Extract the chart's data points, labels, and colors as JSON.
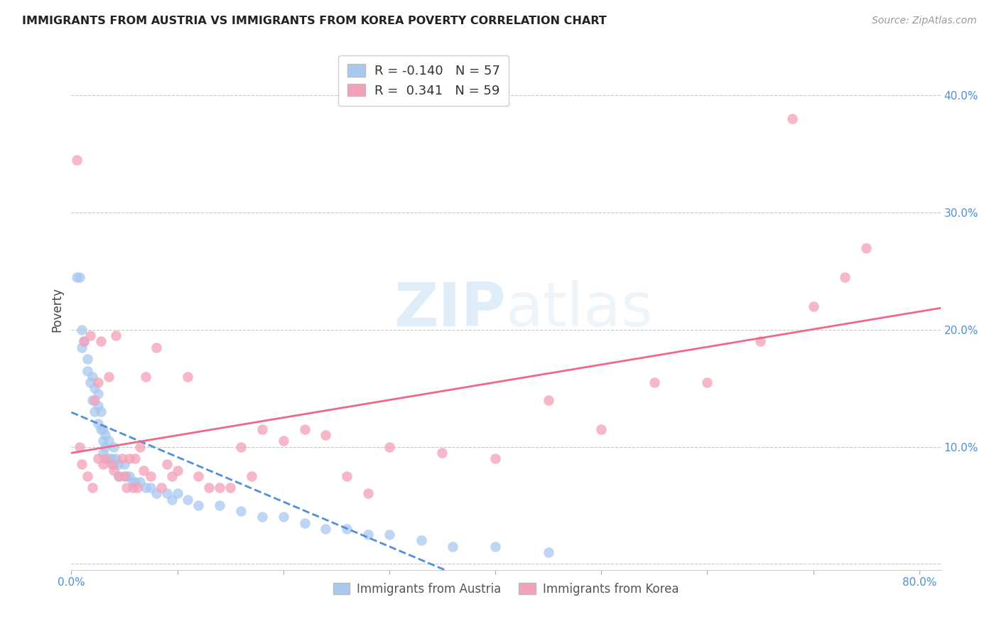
{
  "title": "IMMIGRANTS FROM AUSTRIA VS IMMIGRANTS FROM KOREA POVERTY CORRELATION CHART",
  "source": "Source: ZipAtlas.com",
  "xlim": [
    0.0,
    0.82
  ],
  "ylim": [
    -0.005,
    0.44
  ],
  "watermark_zip": "ZIP",
  "watermark_atlas": "atlas",
  "legend_r_austria": "-0.140",
  "legend_n_austria": "57",
  "legend_r_korea": " 0.341",
  "legend_n_korea": "59",
  "austria_color": "#a8c8f0",
  "korea_color": "#f4a0b8",
  "austria_line_color": "#5090d8",
  "korea_line_color": "#f06888",
  "ylabel_label": "Poverty",
  "austria_scatter_x": [
    0.005,
    0.008,
    0.01,
    0.01,
    0.012,
    0.015,
    0.015,
    0.018,
    0.02,
    0.02,
    0.022,
    0.022,
    0.025,
    0.025,
    0.025,
    0.028,
    0.028,
    0.03,
    0.03,
    0.03,
    0.032,
    0.032,
    0.035,
    0.035,
    0.038,
    0.04,
    0.04,
    0.042,
    0.045,
    0.045,
    0.05,
    0.052,
    0.055,
    0.058,
    0.06,
    0.065,
    0.07,
    0.075,
    0.08,
    0.09,
    0.095,
    0.1,
    0.11,
    0.12,
    0.14,
    0.16,
    0.18,
    0.2,
    0.22,
    0.24,
    0.26,
    0.28,
    0.3,
    0.33,
    0.36,
    0.4,
    0.45
  ],
  "austria_scatter_y": [
    0.245,
    0.245,
    0.2,
    0.185,
    0.19,
    0.175,
    0.165,
    0.155,
    0.16,
    0.14,
    0.15,
    0.13,
    0.145,
    0.135,
    0.12,
    0.13,
    0.115,
    0.115,
    0.105,
    0.095,
    0.11,
    0.1,
    0.105,
    0.09,
    0.09,
    0.1,
    0.085,
    0.09,
    0.085,
    0.075,
    0.085,
    0.075,
    0.075,
    0.07,
    0.07,
    0.07,
    0.065,
    0.065,
    0.06,
    0.06,
    0.055,
    0.06,
    0.055,
    0.05,
    0.05,
    0.045,
    0.04,
    0.04,
    0.035,
    0.03,
    0.03,
    0.025,
    0.025,
    0.02,
    0.015,
    0.015,
    0.01
  ],
  "korea_scatter_x": [
    0.005,
    0.008,
    0.01,
    0.012,
    0.015,
    0.018,
    0.02,
    0.022,
    0.025,
    0.025,
    0.028,
    0.03,
    0.032,
    0.035,
    0.038,
    0.04,
    0.042,
    0.045,
    0.048,
    0.05,
    0.052,
    0.055,
    0.058,
    0.06,
    0.062,
    0.065,
    0.068,
    0.07,
    0.075,
    0.08,
    0.085,
    0.09,
    0.095,
    0.1,
    0.11,
    0.12,
    0.13,
    0.14,
    0.15,
    0.16,
    0.17,
    0.18,
    0.2,
    0.22,
    0.24,
    0.26,
    0.28,
    0.3,
    0.35,
    0.4,
    0.45,
    0.5,
    0.55,
    0.6,
    0.65,
    0.68,
    0.7,
    0.73,
    0.75
  ],
  "korea_scatter_y": [
    0.345,
    0.1,
    0.085,
    0.19,
    0.075,
    0.195,
    0.065,
    0.14,
    0.155,
    0.09,
    0.19,
    0.085,
    0.09,
    0.16,
    0.085,
    0.08,
    0.195,
    0.075,
    0.09,
    0.075,
    0.065,
    0.09,
    0.065,
    0.09,
    0.065,
    0.1,
    0.08,
    0.16,
    0.075,
    0.185,
    0.065,
    0.085,
    0.075,
    0.08,
    0.16,
    0.075,
    0.065,
    0.065,
    0.065,
    0.1,
    0.075,
    0.115,
    0.105,
    0.115,
    0.11,
    0.075,
    0.06,
    0.1,
    0.095,
    0.09,
    0.14,
    0.115,
    0.155,
    0.155,
    0.19,
    0.38,
    0.22,
    0.245,
    0.27
  ]
}
